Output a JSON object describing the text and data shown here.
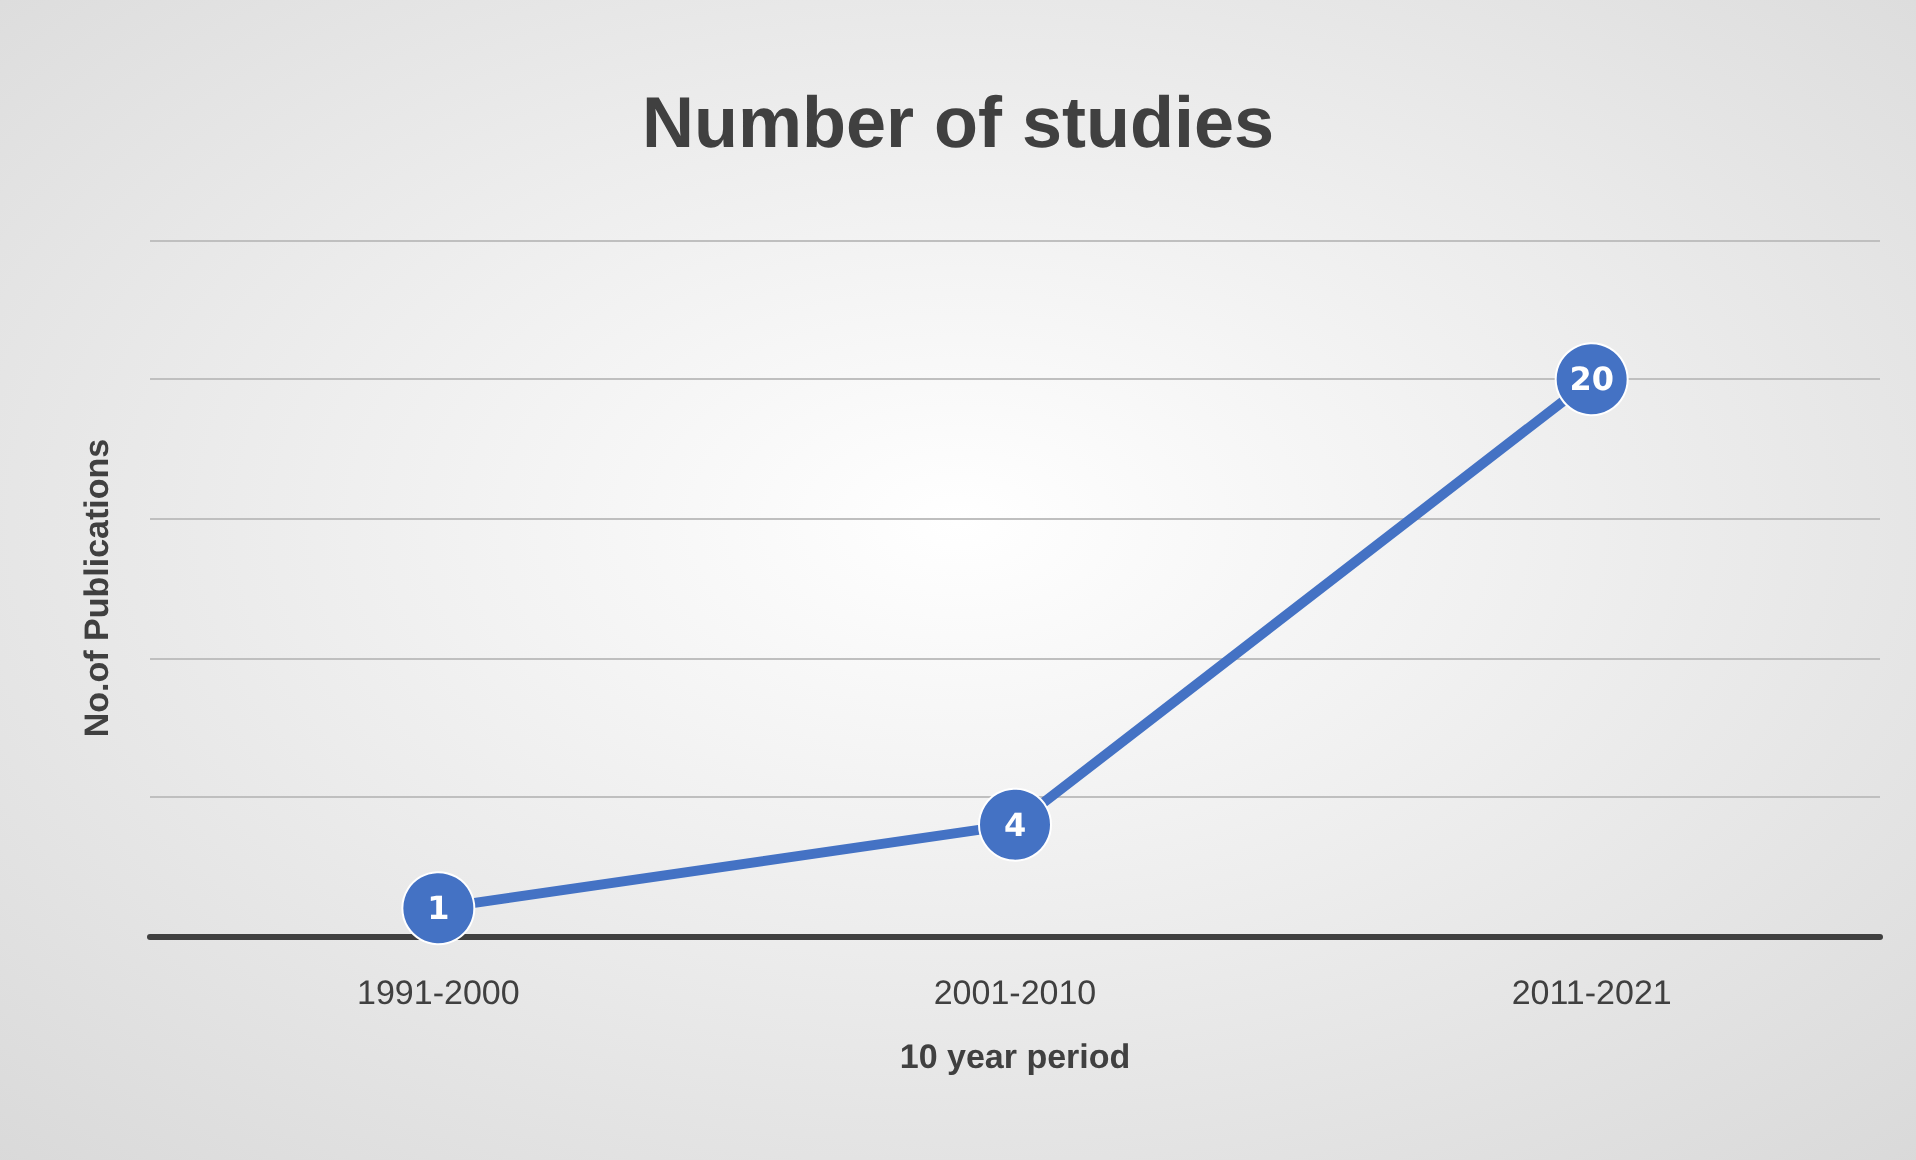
{
  "chart_data": {
    "type": "line",
    "title": "Number of studies",
    "xlabel": "10 year period",
    "ylabel": "No.of Publications",
    "categories": [
      "1991-2000",
      "2001-2010",
      "2011-2021"
    ],
    "series": [
      {
        "color": "#4472c4",
        "values": [
          1,
          4,
          20
        ]
      }
    ],
    "ylim": [
      0,
      25
    ],
    "yticks": [
      {
        "value": 0,
        "label": null
      },
      {
        "value": 5,
        "label": null
      },
      {
        "value": 10,
        "label": null
      },
      {
        "value": 15,
        "label": null
      },
      {
        "value": 20,
        "label": null
      },
      {
        "value": 25,
        "label": null
      }
    ],
    "grid": "y",
    "tick_labels": "x",
    "data_labels": true,
    "marker": "circle",
    "line_style": "solid"
  }
}
